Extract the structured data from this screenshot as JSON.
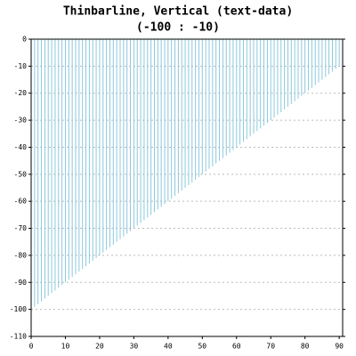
{
  "chart_data": {
    "type": "thinbar",
    "title": "Thinbarline, Vertical (text-data)",
    "subtitle": "(-100 : -10)",
    "x": [
      0,
      1,
      2,
      3,
      4,
      5,
      6,
      7,
      8,
      9,
      10,
      11,
      12,
      13,
      14,
      15,
      16,
      17,
      18,
      19,
      20,
      21,
      22,
      23,
      24,
      25,
      26,
      27,
      28,
      29,
      30,
      31,
      32,
      33,
      34,
      35,
      36,
      37,
      38,
      39,
      40,
      41,
      42,
      43,
      44,
      45,
      46,
      47,
      48,
      49,
      50,
      51,
      52,
      53,
      54,
      55,
      56,
      57,
      58,
      59,
      60,
      61,
      62,
      63,
      64,
      65,
      66,
      67,
      68,
      69,
      70,
      71,
      72,
      73,
      74,
      75,
      76,
      77,
      78,
      79,
      80,
      81,
      82,
      83,
      84,
      85,
      86,
      87,
      88,
      89,
      90
    ],
    "values": [
      -100,
      -99,
      -98,
      -97,
      -96,
      -95,
      -94,
      -93,
      -92,
      -91,
      -90,
      -89,
      -88,
      -87,
      -86,
      -85,
      -84,
      -83,
      -82,
      -81,
      -80,
      -79,
      -78,
      -77,
      -76,
      -75,
      -74,
      -73,
      -72,
      -71,
      -70,
      -69,
      -68,
      -67,
      -66,
      -65,
      -64,
      -63,
      -62,
      -61,
      -60,
      -59,
      -58,
      -57,
      -56,
      -55,
      -54,
      -53,
      -52,
      -51,
      -50,
      -49,
      -48,
      -47,
      -46,
      -45,
      -44,
      -43,
      -42,
      -41,
      -40,
      -39,
      -38,
      -37,
      -36,
      -35,
      -34,
      -33,
      -32,
      -31,
      -30,
      -29,
      -28,
      -27,
      -26,
      -25,
      -24,
      -23,
      -22,
      -21,
      -20,
      -19,
      -18,
      -17,
      -16,
      -15,
      -14,
      -13,
      -12,
      -11,
      -10
    ],
    "color": "#8cc8dc",
    "xlim": [
      0,
      91
    ],
    "xticks": [
      0,
      10,
      20,
      30,
      40,
      50,
      60,
      70,
      80,
      90
    ],
    "ylim": [
      -110,
      0
    ],
    "yticks": [
      0,
      -10,
      -20,
      -30,
      -40,
      -50,
      -60,
      -70,
      -80,
      -90,
      -100,
      -110
    ],
    "grid": true
  }
}
